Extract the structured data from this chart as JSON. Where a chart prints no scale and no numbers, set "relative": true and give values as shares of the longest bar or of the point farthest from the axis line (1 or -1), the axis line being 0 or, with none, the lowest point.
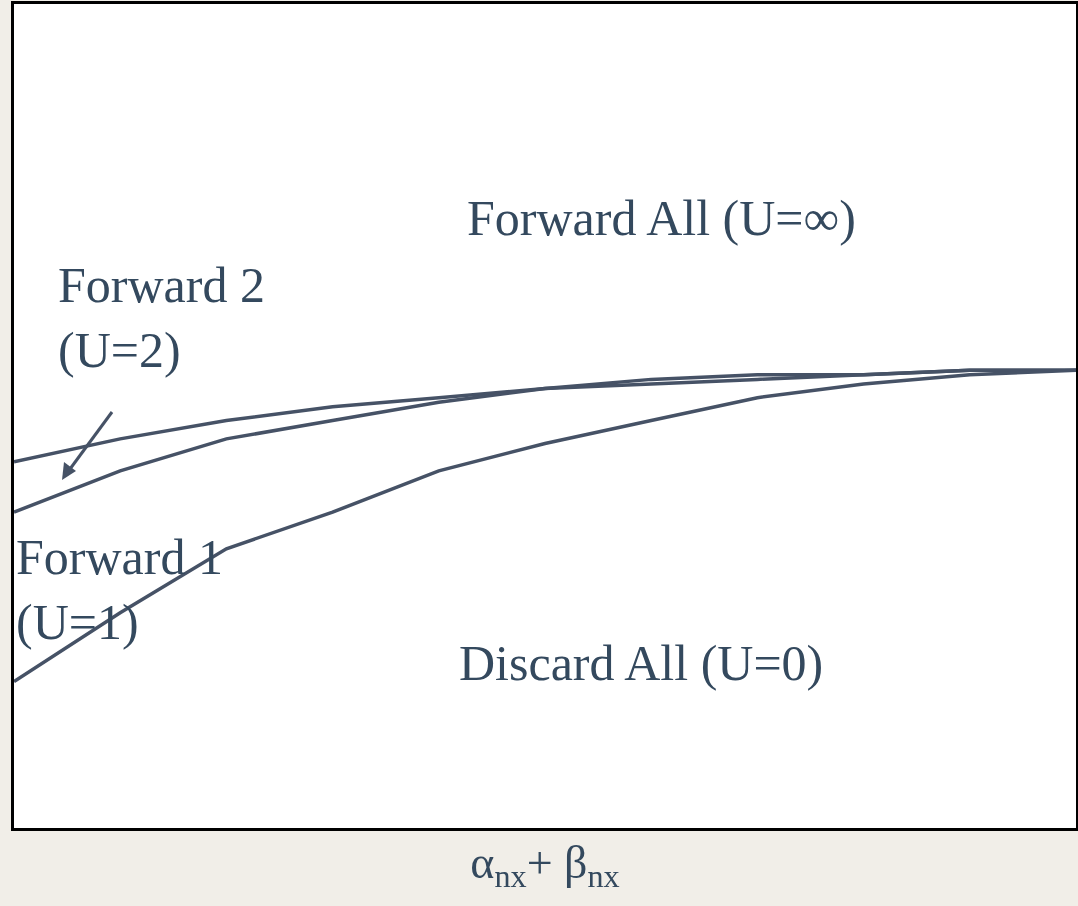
{
  "chart_data": {
    "type": "line",
    "relative": true,
    "tick_labels": false,
    "xlabel": "α$_{nx}$+ β$_{nx}$",
    "categories": [
      null,
      null,
      null,
      null,
      null,
      null,
      null,
      null,
      null,
      null,
      null
    ],
    "series": [
      {
        "color": "#465266",
        "values": [
          0.8,
          0.85,
          0.89,
          0.92,
          0.94,
          0.96,
          0.98,
          0.99,
          0.99,
          1.0,
          1.0
        ]
      },
      {
        "color": "#465266",
        "values": [
          0.69,
          0.78,
          0.85,
          0.89,
          0.93,
          0.96,
          0.97,
          0.98,
          0.99,
          1.0,
          1.0
        ]
      },
      {
        "color": "#465266",
        "values": [
          0.32,
          0.47,
          0.61,
          0.69,
          0.78,
          0.84,
          0.89,
          0.94,
          0.97,
          0.99,
          1.0
        ]
      }
    ],
    "annotations": [
      "Forward All (U=∞)",
      "Forward 2\n(U=2)",
      "Forward 1\n(U=1)",
      "Discard All (U=0)"
    ]
  }
}
